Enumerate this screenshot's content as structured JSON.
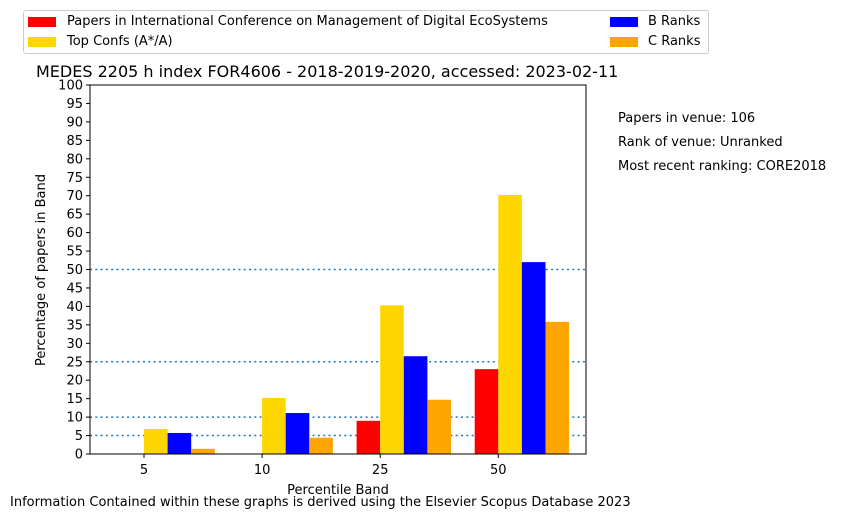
{
  "chart_data": {
    "type": "bar",
    "title": "MEDES 2205 h index FOR4606 - 2018-2019-2020, accessed: 2023-02-11",
    "xlabel": "Percentile Band",
    "ylabel": "Percentage of papers in Band",
    "categories": [
      "5",
      "10",
      "25",
      "50"
    ],
    "ylim": [
      0,
      100
    ],
    "yticks": [
      "0",
      "5",
      "10",
      "15",
      "20",
      "25",
      "30",
      "35",
      "40",
      "45",
      "50",
      "55",
      "60",
      "65",
      "70",
      "75",
      "80",
      "85",
      "90",
      "95",
      "100"
    ],
    "series": [
      {
        "name": "Papers in International Conference on Management of Digital EcoSystems",
        "color": "#ff0000",
        "values": [
          0,
          0,
          9,
          23
        ]
      },
      {
        "name": "Top Confs (A*/A)",
        "color": "#ffd700",
        "values": [
          6.8,
          15.2,
          40.3,
          70.2
        ]
      },
      {
        "name": "B Ranks",
        "color": "#0000ff",
        "values": [
          5.7,
          11.1,
          26.5,
          52
        ]
      },
      {
        "name": "C Ranks",
        "color": "#ffa500",
        "values": [
          1.4,
          4.4,
          14.7,
          35.8
        ]
      }
    ],
    "reference_lines": [
      5,
      10,
      25,
      50
    ],
    "legend_position": "top"
  },
  "info": {
    "papers_in_venue": "Papers in venue: 106",
    "rank_of_venue": "Rank of venue: Unranked",
    "most_recent_ranking": "Most recent ranking: CORE2018"
  },
  "footer": "Information Contained within these graphs is derived using the Elsevier Scopus Database 2023"
}
